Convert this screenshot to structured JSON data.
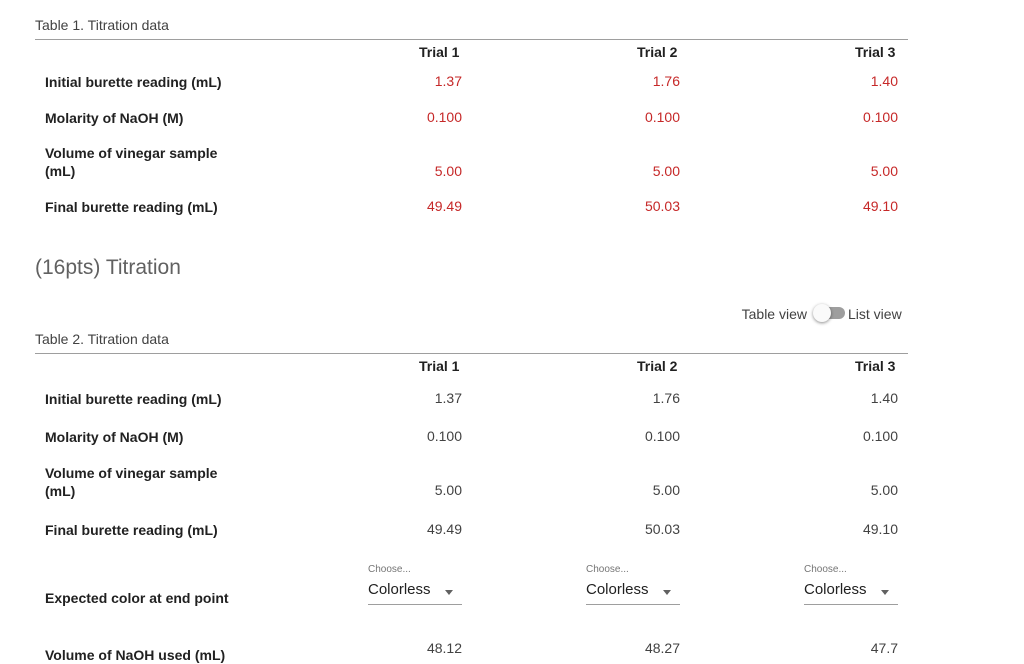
{
  "table1": {
    "caption": "Table 1. Titration data",
    "columns": [
      "Trial 1",
      "Trial 2",
      "Trial 3"
    ],
    "rows": [
      {
        "label": "Initial burette reading (mL)",
        "values": [
          "1.37",
          "1.76",
          "1.40"
        ]
      },
      {
        "label": "Molarity of NaOH (M)",
        "values": [
          "0.100",
          "0.100",
          "0.100"
        ]
      },
      {
        "label": "Volume of vinegar sample (mL)",
        "values": [
          "5.00",
          "5.00",
          "5.00"
        ]
      },
      {
        "label": "Final burette reading (mL)",
        "values": [
          "49.49",
          "50.03",
          "49.10"
        ]
      }
    ]
  },
  "section": {
    "title": "(16pts) Titration"
  },
  "view_toggle": {
    "left_label": "Table view",
    "right_label": "List view"
  },
  "table2": {
    "caption": "Table 2. Titration data",
    "columns": [
      "Trial 1",
      "Trial 2",
      "Trial 3"
    ],
    "rows": [
      {
        "label": "Initial burette reading (mL)",
        "values": [
          "1.37",
          "1.76",
          "1.40"
        ]
      },
      {
        "label": "Molarity of NaOH (M)",
        "values": [
          "0.100",
          "0.100",
          "0.100"
        ]
      },
      {
        "label": "Volume of vinegar sample (mL)",
        "values": [
          "5.00",
          "5.00",
          "5.00"
        ]
      },
      {
        "label": "Final burette reading (mL)",
        "values": [
          "49.49",
          "50.03",
          "49.10"
        ]
      }
    ],
    "color_row": {
      "label": "Expected color at end point",
      "hint": "Choose...",
      "values": [
        "Colorless",
        "Colorless",
        "Colorless"
      ]
    },
    "naoh_row": {
      "label": "Volume of NaOH used (mL)",
      "values": [
        "48.12",
        "48.27",
        "47.7"
      ]
    }
  },
  "colors": {
    "given_value": "#c62828",
    "entered_value": "#424242"
  },
  "icons": {
    "select_caret": "caret-down-icon"
  }
}
